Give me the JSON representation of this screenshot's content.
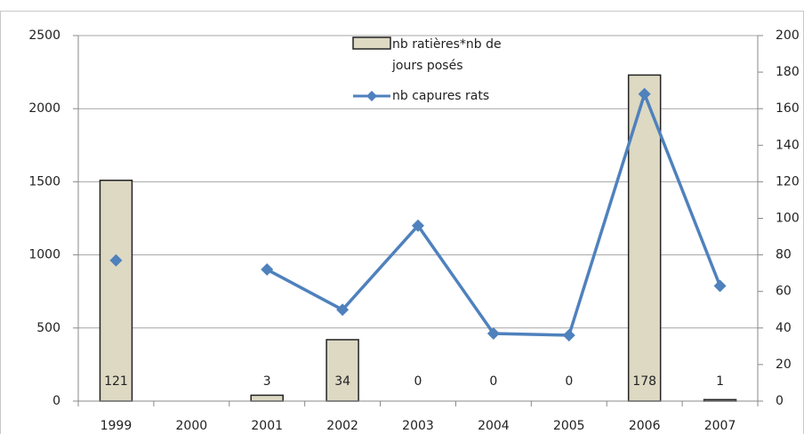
{
  "chart_data": {
    "type": "bar_line",
    "categories": [
      "1999",
      "2000",
      "2001",
      "2002",
      "2003",
      "2004",
      "2005",
      "2006",
      "2007"
    ],
    "series": [
      {
        "name": "nb ratières*nb de jours posés",
        "type": "bar",
        "color": "#ddd9c3",
        "values": [
          1510,
          null,
          40,
          420,
          0,
          0,
          0,
          2230,
          10
        ]
      },
      {
        "name": "nb capures rats",
        "type": "line",
        "color": "#4f81bd",
        "axis": "y2",
        "values": [
          77,
          null,
          72,
          50,
          96,
          37,
          36,
          168,
          63
        ]
      }
    ],
    "data_labels": [
      121,
      null,
      3,
      34,
      0,
      0,
      0,
      178,
      1
    ],
    "ylim": [
      0,
      2500
    ],
    "yticks": [
      0,
      500,
      1000,
      1500,
      2000,
      2500
    ],
    "y2lim": [
      0,
      200
    ],
    "y2ticks": [
      0,
      20,
      40,
      60,
      80,
      100,
      120,
      140,
      160,
      180,
      200
    ],
    "grid": true
  }
}
